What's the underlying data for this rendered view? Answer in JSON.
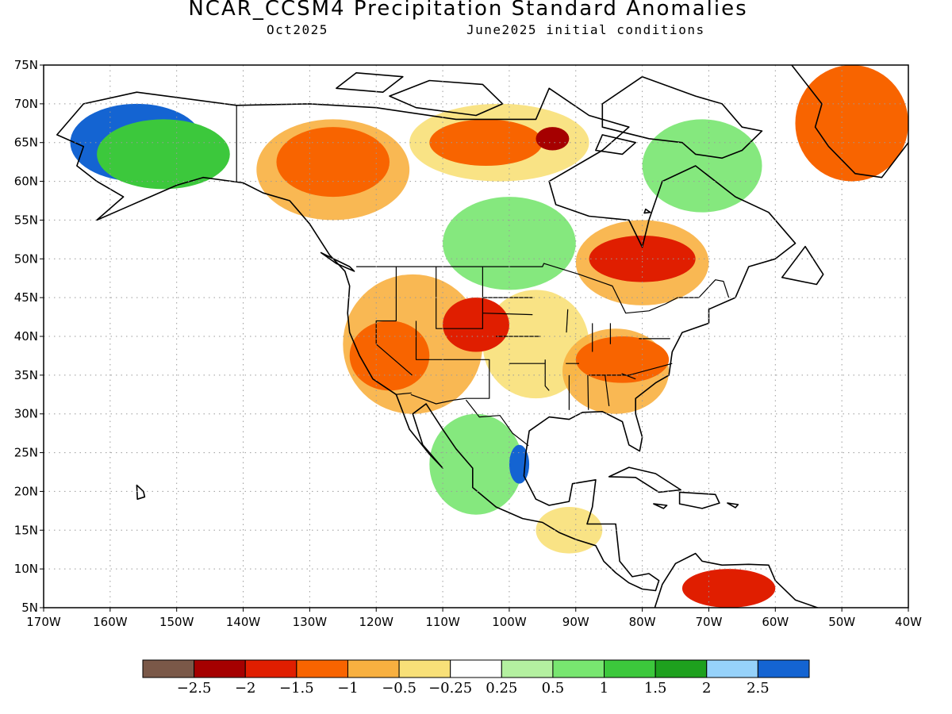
{
  "title": "NCAR_CCSM4 Precipitation Standard Anomalies",
  "valid_month": "Oct2025",
  "initial_conditions": "June2025 initial conditions",
  "map": {
    "lon_range": [
      -170,
      -40
    ],
    "lat_range": [
      5,
      75
    ],
    "lon_ticks": [
      "170W",
      "160W",
      "150W",
      "140W",
      "130W",
      "120W",
      "110W",
      "100W",
      "90W",
      "80W",
      "70W",
      "60W",
      "50W",
      "40W"
    ],
    "lat_ticks": [
      "5N",
      "10N",
      "15N",
      "20N",
      "25N",
      "30N",
      "35N",
      "40N",
      "45N",
      "50N",
      "55N",
      "60N",
      "65N",
      "70N",
      "75N"
    ],
    "grid": "dotted"
  },
  "colorbar": {
    "colors": [
      "#7a5848",
      "#a50000",
      "#e01e00",
      "#f86400",
      "#f8b040",
      "#f8e078",
      "#ffffff",
      "#b4f0a0",
      "#78e670",
      "#3cc83c",
      "#1ea01e",
      "#96d2fa",
      "#1464d2"
    ],
    "labels": [
      "-2.5",
      "-2",
      "-1.5",
      "-1",
      "-0.5",
      "-0.25",
      "0.25",
      "0.5",
      "1",
      "1.5",
      "2",
      "2.5"
    ]
  },
  "anomaly_regions": [
    {
      "id": "alaska-wet",
      "level": 2.5,
      "lon": [
        -166,
        -146
      ],
      "lat": [
        60,
        70
      ]
    },
    {
      "id": "alaska-green",
      "level": 1,
      "lon": [
        -162,
        -142
      ],
      "lat": [
        59,
        68
      ]
    },
    {
      "id": "yukon-dry",
      "level": -1.5,
      "lon": [
        -135,
        -118
      ],
      "lat": [
        58,
        67
      ]
    },
    {
      "id": "nwt-dry",
      "level": -1.5,
      "lon": [
        -112,
        -95
      ],
      "lat": [
        62,
        68
      ]
    },
    {
      "id": "hudson-dark",
      "level": -2.5,
      "lon": [
        -96,
        -91
      ],
      "lat": [
        64,
        67
      ]
    },
    {
      "id": "quebec-dry",
      "level": -2,
      "lon": [
        -88,
        -72
      ],
      "lat": [
        47,
        53
      ]
    },
    {
      "id": "rockies-dry",
      "level": -2,
      "lon": [
        -110,
        -100
      ],
      "lat": [
        38,
        45
      ]
    },
    {
      "id": "california-dry",
      "level": -1.5,
      "lon": [
        -124,
        -112
      ],
      "lat": [
        33,
        42
      ]
    },
    {
      "id": "ohio-valley-dry",
      "level": -1.5,
      "lon": [
        -90,
        -76
      ],
      "lat": [
        34,
        40
      ]
    },
    {
      "id": "gulf-wet",
      "level": 2.5,
      "lon": [
        -100,
        -97
      ],
      "lat": [
        21,
        26
      ]
    },
    {
      "id": "greenland-dry",
      "level": -1.5,
      "lon": [
        -57,
        -40
      ],
      "lat": [
        60,
        75
      ]
    },
    {
      "id": "venezuela-dry",
      "level": -2,
      "lon": [
        -74,
        -60
      ],
      "lat": [
        5,
        10
      ]
    }
  ]
}
